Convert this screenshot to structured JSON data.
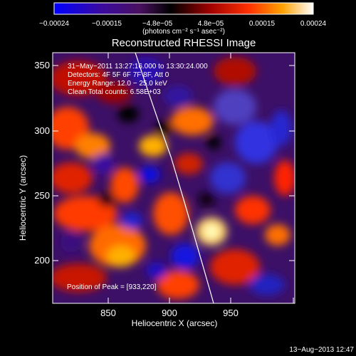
{
  "colorbar": {
    "ticks": [
      "−0.00024",
      "−0.00015",
      "−4.8e−05",
      "4.8e−05",
      "0.00015",
      "0.00024"
    ],
    "unit_line": "(photons cm⁻² s⁻¹ asec⁻²)"
  },
  "title": "Reconstructed RHESSI Image",
  "info": {
    "line1": "31−May−2011 13:27:16.000 to 13:30:24.000",
    "line2": "Detectors: 4F 5F 6F 7F 8F, Att 0",
    "line3": "Energy Range: 12.0 − 25.0 keV",
    "line4": "Clean    Total counts: 6.58E+03"
  },
  "peak": "Position of Peak = [933,220]",
  "axes": {
    "xlabel": "Heliocentric X (arcsec)",
    "ylabel": "Heliocentric Y (arcsec)",
    "xticks": [
      "850",
      "900",
      "950"
    ],
    "yticks": [
      "350",
      "300",
      "250",
      "200"
    ]
  },
  "timestamp": "13−Aug−2013 12:47",
  "palette": [
    "#0000ff",
    "#3a0a9a",
    "#5a1e78",
    "#000000",
    "#a00000",
    "#ff3000",
    "#ff9000",
    "#ffff80",
    "#ffffff"
  ]
}
